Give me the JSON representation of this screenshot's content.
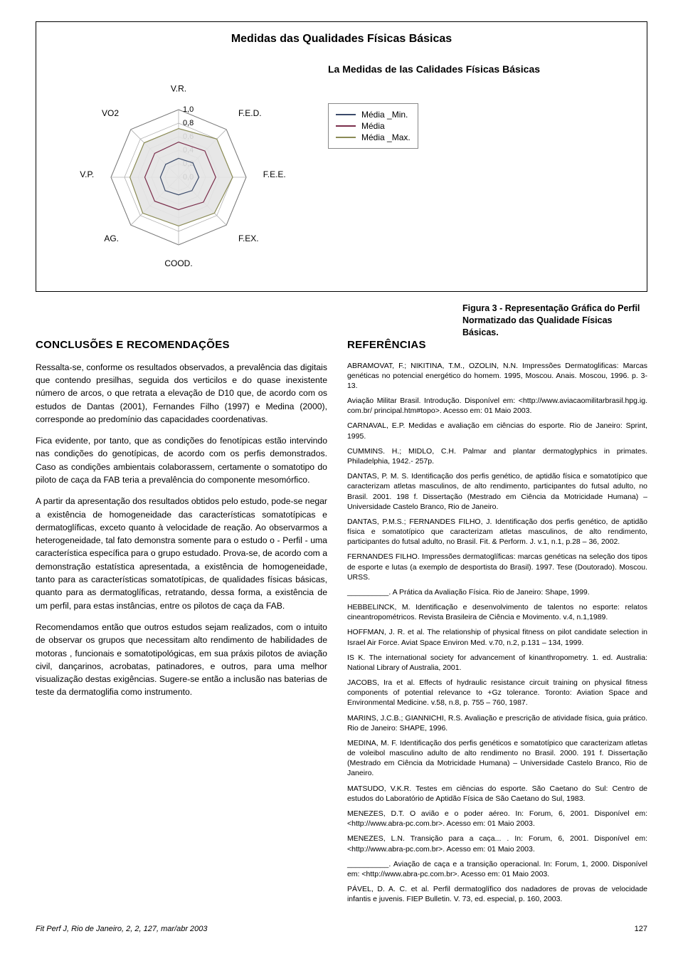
{
  "chart": {
    "type": "radar",
    "title": "Medidas das Qualidades Físicas Básicas",
    "subtitle": "La Medidas de las Calidades Físicas Básicas",
    "axes": [
      "V.R.",
      "F.E.D.",
      "F.E.E.",
      "F.EX.",
      "COOD.",
      "AG.",
      "V.P.",
      "VO2"
    ],
    "ticks": [
      "1,0",
      "0,8",
      "0,6",
      "0,4",
      "0,2",
      "0,0"
    ],
    "tick_values": [
      1.0,
      0.8,
      0.6,
      0.4,
      0.2,
      0.0
    ],
    "series": [
      {
        "name": "Média _Min.",
        "color": "#3a4a6a",
        "width": 1.2,
        "values": [
          0.28,
          0.3,
          0.3,
          0.28,
          0.26,
          0.28,
          0.27,
          0.27
        ]
      },
      {
        "name": "Média",
        "color": "#7a2d4a",
        "width": 1.2,
        "values": [
          0.52,
          0.55,
          0.55,
          0.52,
          0.48,
          0.5,
          0.5,
          0.5
        ]
      },
      {
        "name": "Média _Max.",
        "color": "#8a8a55",
        "width": 1.2,
        "values": [
          0.72,
          0.8,
          0.8,
          0.75,
          0.72,
          0.75,
          0.72,
          0.72
        ]
      }
    ],
    "grid_color": "#b0b0b0",
    "fill_color": "#e4e4e4",
    "background_color": "#ffffff",
    "max": 1.0
  },
  "caption": "Figura 3 - Representação Gráfica do Perfil Normatizado das Qualidade Físicas Básicas.",
  "left": {
    "heading": "CONCLUSÕES E RECOMENDAÇÕES",
    "paras": [
      "Ressalta-se, conforme os resultados observados, a prevalência das digitais que contendo presilhas, seguida dos verticilos e do quase inexistente número de arcos, o que retrata a elevação de D10 que, de acordo com os estudos de Dantas (2001), Fernandes Filho (1997) e Medina (2000), corresponde ao predomínio das capacidades coordenativas.",
      "Fica evidente, por tanto, que as condições do fenotípicas estão intervindo nas condições do genotípicas, de acordo com os perfis demonstrados. Caso as condições ambientais colaborassem, certamente o somatotipo do piloto de caça da FAB teria a prevalência do componente mesomórfico.",
      "A partir da apresentação dos resultados obtidos pelo estudo, pode-se negar a existência de homogeneidade das características somatotípicas e dermatoglíficas, exceto quanto à velocidade de reação. Ao observarmos a heterogeneidade, tal fato demonstra somente para o estudo o - Perfil - uma característica específica para o grupo estudado. Prova-se, de acordo com a demonstração estatística apresentada, a existência de homogeneidade, tanto para as características somatotípicas, de qualidades físicas básicas, quanto para as dermatoglíficas, retratando, dessa forma, a existência de um perfil, para estas instâncias, entre os pilotos de caça da FAB.",
      "Recomendamos então que outros estudos sejam realizados, com o intuito de observar os grupos que necessitam alto rendimento de habilidades de motoras , funcionais e somatotipológicas, em sua práxis pilotos de aviação civil, dançarinos, acrobatas, patinadores, e outros, para uma melhor visualização destas exigências. Sugere-se então a inclusão nas baterias de teste da dermatoglifia como instrumento."
    ]
  },
  "right": {
    "heading": "REFERÊNCIAS",
    "refs": [
      "ABRAMOVAT, F.; NIKITINA, T.M., OZOLIN, N.N. Impressões Dermatoglificas: Marcas genéticas no potencial energético do homem. 1995, Moscou. Anais. Moscou, 1996. p. 3-13.",
      "Aviação Militar Brasil. Introdução. Disponível em: <http://www.aviacaomilitarbrasil.hpg.ig. com.br/ principal.htm#topo>. Acesso em: 01 Maio 2003.",
      "CARNAVAL, E.P. Medidas e avaliação em ciências do esporte. Rio de Janeiro: Sprint, 1995.",
      "CUMMINS. H.; MIDLO, C.H. Palmar and plantar dermatoglyphics in primates. Philadelphia, 1942.- 257p.",
      "DANTAS, P. M. S. Identificação dos perfis genético, de aptidão física e somatotípico que caracterizam atletas masculinos, de alto rendimento, participantes do futsal adulto, no Brasil. 2001. 198 f. Dissertação (Mestrado em Ciência da Motricidade Humana) – Universidade Castelo Branco, Rio de Janeiro.",
      "DANTAS, P.M.S.; FERNANDES FILHO, J. Identificação dos perfis genético, de aptidão física e somatotípico que caracterizam atletas masculinos, de alto rendimento, participantes do futsal adulto, no Brasil. Fit. & Perform. J. v.1, n.1, p.28 – 36, 2002.",
      "FERNANDES FILHO. Impressões dermatoglíficas: marcas genéticas na seleção dos tipos de esporte e lutas (a exemplo de desportista do Brasil). 1997. Tese (Doutorado). Moscou. URSS.",
      "__________. A Prática da Avaliação Física. Rio de Janeiro: Shape, 1999.",
      "HEBBELINCK, M. Identificação e desenvolvimento de talentos no esporte: relatos cineantropométricos. Revista Brasileira de Ciência e Movimento. v.4, n.1,1989.",
      "HOFFMAN, J. R. et al. The relationship of physical fitness on pilot candidate selection in Israel Air Force. Aviat Space Environ Med. v.70, n.2, p.131 – 134, 1999.",
      "IS K. The international society for advancement of kinanthropometry. 1. ed. Australia: National Library of Australia, 2001.",
      "JACOBS, Ira et al. Effects of hydraulic resistance circuit training on physical fitness components of potential relevance to +Gz tolerance. Toronto: Aviation Space and Environmental Medicine. v.58, n.8, p. 755 – 760, 1987.",
      "MARINS, J.C.B.; GIANNICHI, R.S. Avaliação e prescrição de atividade física, guia prático. Rio de Janeiro: SHAPE, 1996.",
      "MEDINA, M. F. Identificação dos perfis genéticos e somatotípico que caracterizam atletas de voleibol masculino adulto de alto rendimento no Brasil. 2000. 191 f. Dissertação (Mestrado em Ciência da Motricidade Humana) – Universidade Castelo Branco, Rio de Janeiro.",
      "MATSUDO, V.K.R. Testes em ciências do esporte. São Caetano do Sul: Centro de estudos do Laboratório de Aptidão Física de São Caetano do Sul, 1983.",
      "MENEZES, D.T. O avião e o poder aéreo. In: Forum, 6, 2001. Disponível em: <http://www.abra-pc.com.br>. Acesso em: 01 Maio 2003.",
      "MENEZES, L.N. Transição para a caça... . In: Forum, 6, 2001. Disponível em: <http://www.abra-pc.com.br>. Acesso em: 01 Maio 2003.",
      "__________. Aviação de caça e a transição operacional. In: Forum, 1, 2000. Disponível em: <http://www.abra-pc.com.br>. Acesso em: 01 Maio 2003.",
      "PÁVEL, D. A. C. et al. Perfil dermatoglífico dos nadadores de provas de velocidade infantis e juvenis. FIEP Bulletin. V. 73, ed. especial, p. 160, 2003."
    ]
  },
  "footer": {
    "left": "Fit Perf J, Rio de Janeiro, 2, 2, 127, mar/abr 2003",
    "page": "127"
  }
}
